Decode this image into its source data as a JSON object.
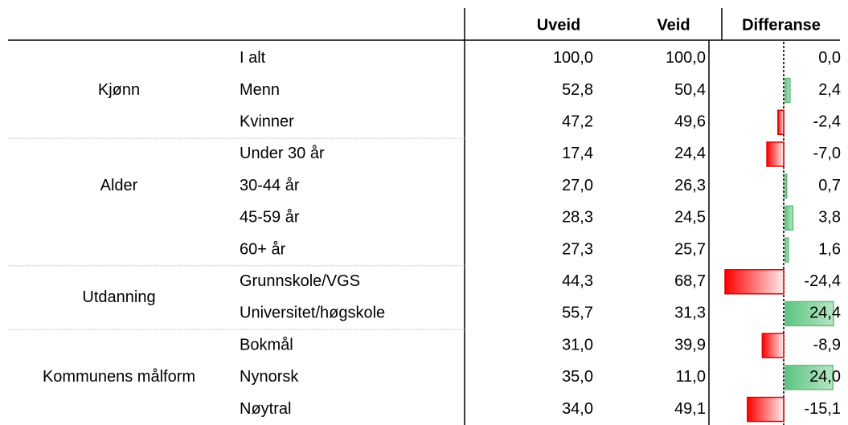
{
  "table": {
    "header": [
      "Uveid",
      "Veid",
      "Differanse"
    ],
    "groups": [
      {
        "label": "Kjønn",
        "rows": [
          {
            "label": "I alt",
            "uveid": "100,0",
            "veid": "100,0",
            "diff": {
              "value": 0.0,
              "label": "0,0"
            }
          },
          {
            "label": "Menn",
            "uveid": "52,8",
            "veid": "50,4",
            "diff": {
              "value": 2.4,
              "label": "2,4"
            }
          },
          {
            "label": "Kvinner",
            "uveid": "47,2",
            "veid": "49,6",
            "diff": {
              "value": -2.4,
              "label": "-2,4"
            }
          }
        ]
      },
      {
        "label": "Alder",
        "rows": [
          {
            "label": "Under 30 år",
            "uveid": "17,4",
            "veid": "24,4",
            "diff": {
              "value": -7.0,
              "label": "-7,0"
            }
          },
          {
            "label": "30-44 år",
            "uveid": "27,0",
            "veid": "26,3",
            "diff": {
              "value": 0.7,
              "label": "0,7"
            }
          },
          {
            "label": "45-59 år",
            "uveid": "28,3",
            "veid": "24,5",
            "diff": {
              "value": 3.8,
              "label": "3,8"
            }
          },
          {
            "label": "60+ år",
            "uveid": "27,3",
            "veid": "25,7",
            "diff": {
              "value": 1.6,
              "label": "1,6"
            }
          }
        ]
      },
      {
        "label": "Utdanning",
        "rows": [
          {
            "label": "Grunnskole/VGS",
            "uveid": "44,3",
            "veid": "68,7",
            "diff": {
              "value": -24.4,
              "label": "-24,4"
            }
          },
          {
            "label": "Universitet/høgskole",
            "uveid": "55,7",
            "veid": "31,3",
            "diff": {
              "value": 24.4,
              "label": "24,4"
            }
          }
        ]
      },
      {
        "label": "Kommunens målform",
        "rows": [
          {
            "label": "Bokmål",
            "uveid": "31,0",
            "veid": "39,9",
            "diff": {
              "value": -8.9,
              "label": "-8,9"
            }
          },
          {
            "label": "Nynorsk",
            "uveid": "35,0",
            "veid": "11,0",
            "diff": {
              "value": 24.0,
              "label": "24,0"
            }
          },
          {
            "label": "Nøytral",
            "uveid": "34,0",
            "veid": "49,1",
            "diff": {
              "value": -15.1,
              "label": "-15,1"
            }
          }
        ]
      }
    ]
  }
}
